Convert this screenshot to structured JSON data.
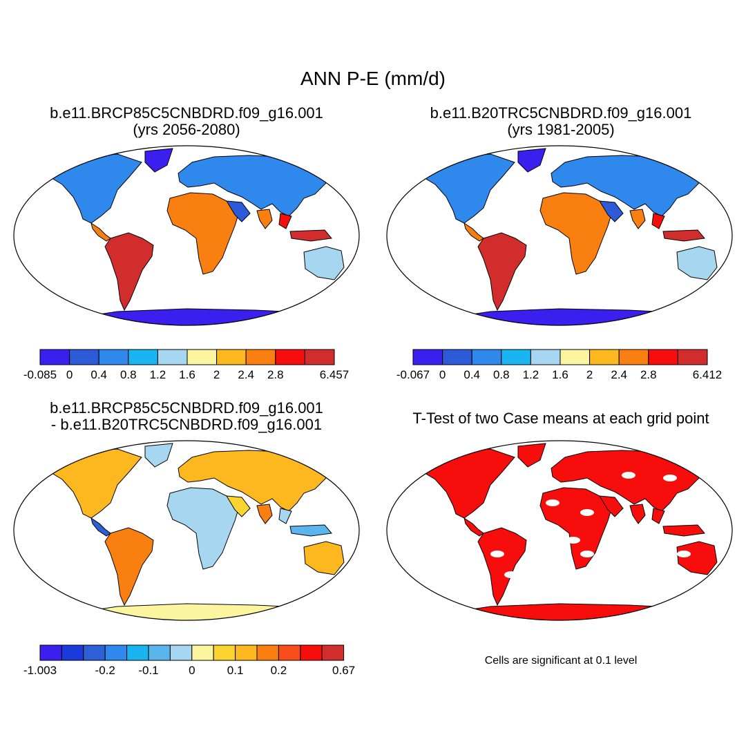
{
  "title": "ANN P-E (mm/d)",
  "panels": [
    {
      "id": "p1",
      "title_line1": "b.e11.BRCP85C5CNBDRD.f09_g16.001",
      "title_line2": "(yrs 2056-2080)",
      "map_type": "mean"
    },
    {
      "id": "p2",
      "title_line1": "b.e11.B20TRC5CNBDRD.f09_g16.001",
      "title_line2": "(yrs 1981-2005)",
      "map_type": "mean"
    },
    {
      "id": "p3",
      "title_line1": "b.e11.BRCP85C5CNBDRD.f09_g16.001",
      "title_line2": "- b.e11.B20TRC5CNBDRD.f09_g16.001",
      "map_type": "difference"
    },
    {
      "id": "p4",
      "title_line1": "T-Test of two Case means at each grid point",
      "title_line2": "",
      "map_type": "significance"
    }
  ],
  "significance_note": "Cells are significant at 0.1 level",
  "chart_data": [
    {
      "type": "heatmap",
      "title": "b.e11.BRCP85C5CNBDRD.f09_g16.001 (yrs 2056-2080)",
      "variable": "ANN P-E (mm/d)",
      "projection": "robinson world map",
      "colorbar": {
        "colors": [
          "#3a1fef",
          "#2d5ad6",
          "#2f88ec",
          "#1ab4f0",
          "#a6d6f0",
          "#fcf5a0",
          "#fcb81e",
          "#f98010",
          "#f80d0d",
          "#d22d2d"
        ],
        "labels": [
          "-0.085",
          "0",
          "0.4",
          "0.8",
          "1.2",
          "1.6",
          "2",
          "2.4",
          "2.8",
          "",
          "6.457"
        ],
        "min": -0.085,
        "max": 6.457
      }
    },
    {
      "type": "heatmap",
      "title": "b.e11.B20TRC5CNBDRD.f09_g16.001 (yrs 1981-2005)",
      "variable": "ANN P-E (mm/d)",
      "projection": "robinson world map",
      "colorbar": {
        "colors": [
          "#3a1fef",
          "#2d5ad6",
          "#2f88ec",
          "#1ab4f0",
          "#a6d6f0",
          "#fcf5a0",
          "#fcb81e",
          "#f98010",
          "#f80d0d",
          "#d22d2d"
        ],
        "labels": [
          "-0.067",
          "0",
          "0.4",
          "0.8",
          "1.2",
          "1.6",
          "2",
          "2.4",
          "2.8",
          "",
          "6.412"
        ],
        "min": -0.067,
        "max": 6.412
      }
    },
    {
      "type": "heatmap",
      "title": "b.e11.BRCP85C5CNBDRD.f09_g16.001 - b.e11.B20TRC5CNBDRD.f09_g16.001",
      "variable": "ANN P-E difference (mm/d)",
      "projection": "robinson world map",
      "colorbar": {
        "colors": [
          "#3a1fef",
          "#1a3ad9",
          "#2d60d6",
          "#2f88ec",
          "#1ab4f0",
          "#5cb4ec",
          "#a6d6f0",
          "#fcf5a0",
          "#fcd430",
          "#fcb81e",
          "#f98010",
          "#f84d1a",
          "#f80d0d",
          "#d22d2d"
        ],
        "labels": [
          "-1.003",
          "",
          "",
          "-0.2",
          "",
          "-0.1",
          "",
          "0",
          "",
          "0.1",
          "",
          "0.2",
          "",
          "",
          "0.67"
        ],
        "min": -1.003,
        "max": 0.67
      }
    },
    {
      "type": "heatmap",
      "title": "T-Test of two Case means at each grid point",
      "projection": "robinson world map",
      "significant_color": "#f80d0d",
      "note": "Cells are significant at 0.1 level"
    }
  ]
}
